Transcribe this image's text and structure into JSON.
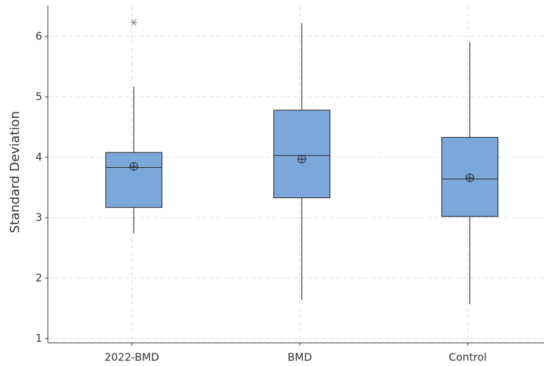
{
  "chart_data": {
    "type": "box",
    "y_label": "Standard Deviation",
    "categories": [
      "2022-BMD",
      "BMD",
      "Control"
    ],
    "color": "#7ba7db",
    "boxes": [
      {
        "low": 2.74,
        "q1": 3.17,
        "median": 3.83,
        "q3": 4.08,
        "high": 5.17,
        "mean": 3.85,
        "outliers": [
          6.23
        ]
      },
      {
        "low": 1.64,
        "q1": 3.33,
        "median": 4.03,
        "q3": 4.78,
        "high": 6.22,
        "mean": 3.97,
        "outliers": []
      },
      {
        "low": 1.57,
        "q1": 3.02,
        "median": 3.64,
        "q3": 4.33,
        "high": 5.91,
        "mean": 3.66,
        "outliers": []
      }
    ],
    "ylim": [
      0.93,
      6.51
    ],
    "yticks": [
      1,
      2,
      3,
      4,
      5,
      6
    ],
    "grid": true
  }
}
